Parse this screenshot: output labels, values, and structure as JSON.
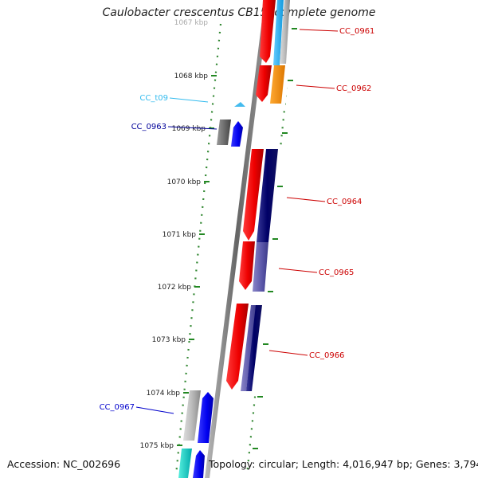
{
  "title": "Caulobacter crescentus CB15, complete genome",
  "footer": {
    "accession": "Accession: NC_002696",
    "summary": "Topology: circular; Length: 4,016,947 bp; Genes: 3,794"
  },
  "ticks": [
    "1067 kbp",
    "1068 kbp",
    "1069 kbp",
    "1070 kbp",
    "1071 kbp",
    "1072 kbp",
    "1073 kbp",
    "1074 kbp",
    "1075 kbp"
  ],
  "genes": [
    {
      "id": "CC_0961",
      "color": "#cc0000"
    },
    {
      "id": "CC_0962",
      "color": "#cc0000"
    },
    {
      "id": "CC_t09",
      "color": "#33bbee"
    },
    {
      "id": "CC_0963",
      "color": "#000099"
    },
    {
      "id": "CC_0964",
      "color": "#cc0000"
    },
    {
      "id": "CC_0965",
      "color": "#cc0000"
    },
    {
      "id": "CC_0966",
      "color": "#cc0000"
    },
    {
      "id": "CC_0967",
      "color": "#0000cc"
    }
  ]
}
